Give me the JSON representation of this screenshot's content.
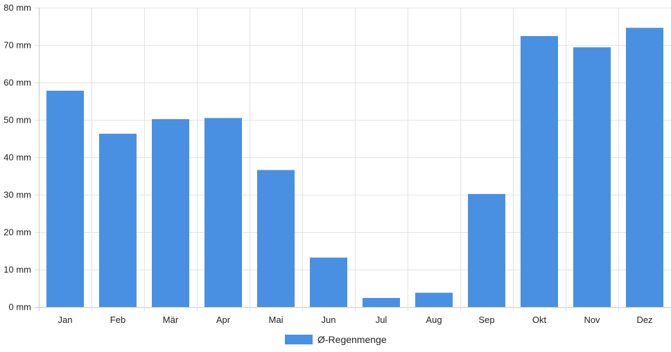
{
  "chart_data": {
    "type": "bar",
    "categories": [
      "Jan",
      "Feb",
      "Mär",
      "Apr",
      "Mai",
      "Jun",
      "Jul",
      "Aug",
      "Sep",
      "Okt",
      "Nov",
      "Dez"
    ],
    "series": [
      {
        "name": "Ø-Regenmenge",
        "values": [
          57.8,
          46.3,
          50.2,
          50.5,
          36.6,
          13.2,
          2.4,
          3.8,
          30.2,
          72.4,
          69.4,
          74.6
        ],
        "color": "#4a90e2"
      }
    ],
    "y_unit": "mm",
    "ylim": [
      0,
      80
    ],
    "yticks": [
      0,
      10,
      20,
      30,
      40,
      50,
      60,
      70,
      80
    ],
    "y_tick_labels": [
      "0 mm",
      "10 mm",
      "20 mm",
      "30 mm",
      "40 mm",
      "50 mm",
      "60 mm",
      "70 mm",
      "80 mm"
    ],
    "grid": true,
    "legend": {
      "position": "bottom",
      "label": "Ø-Regenmenge"
    },
    "title": "",
    "xlabel": "",
    "ylabel": ""
  }
}
